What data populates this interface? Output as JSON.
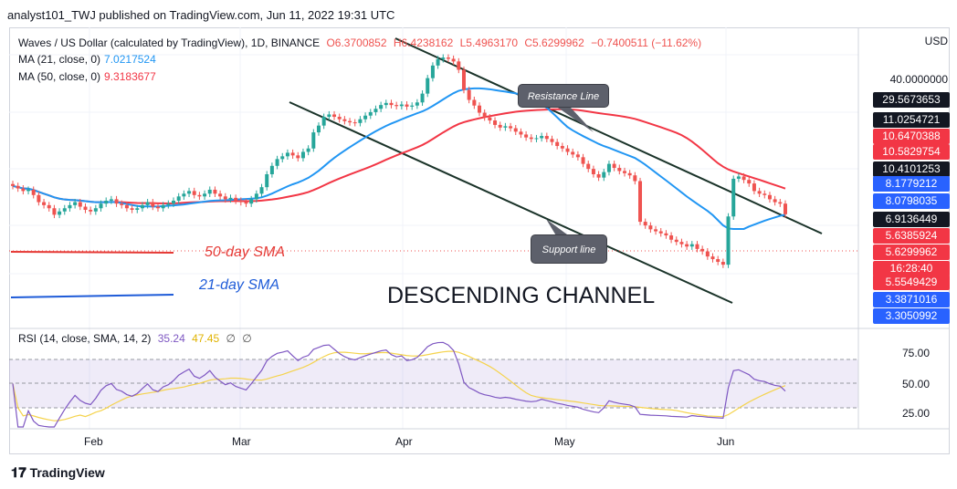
{
  "header": "analyst101_TWJ published on TradingView.com, Jun 11, 2022 19:31 UTC",
  "legend": {
    "symbol": "Waves / US Dollar (calculated by TradingView), 1D, BINANCE",
    "ohlc": {
      "o": "O6.3700852",
      "h": "H6.4238162",
      "l": "L5.4963170",
      "c": "C5.6299962",
      "chg": "−0.7400511 (−11.62%)"
    },
    "ma21": {
      "label": "MA (21, close, 0)",
      "value": "7.0217524"
    },
    "ma50": {
      "label": "MA (50, close, 0)",
      "value": "9.3183677"
    }
  },
  "rsi_legend": {
    "label": "RSI (14, close, SMA, 14, 2)",
    "value": "35.24",
    "sma": "47.45",
    "n1": "∅",
    "n2": "∅"
  },
  "axis": {
    "currency": "USD",
    "top_label": "40.0000000",
    "boxes": [
      {
        "text": "29.5673653",
        "color": "#131722"
      },
      {
        "text": "11.0254721",
        "color": "#131722"
      },
      {
        "text": "10.6470388",
        "color": "#f23645"
      },
      {
        "text": "10.5829754",
        "color": "#f23645"
      },
      {
        "text": "10.4101253",
        "color": "#131722"
      },
      {
        "text": "8.1779212",
        "color": "#2962ff"
      },
      {
        "text": "8.0798035",
        "color": "#2962ff"
      },
      {
        "text": "6.9136449",
        "color": "#131722"
      },
      {
        "text": "5.6385924",
        "color": "#f23645"
      },
      {
        "text": "5.6299962",
        "color": "#f23645"
      },
      {
        "text": "16:28:40",
        "color": "#f23645"
      },
      {
        "text": "5.5549429",
        "color": "#f23645"
      },
      {
        "text": "3.3871016",
        "color": "#2962ff"
      },
      {
        "text": "3.3050992",
        "color": "#2962ff"
      }
    ],
    "rsi_ticks": [
      "75.00",
      "50.00",
      "25.00"
    ],
    "months": [
      "Feb",
      "Mar",
      "Apr",
      "May",
      "Jun"
    ]
  },
  "annotations": {
    "resistance": "Resistance Line",
    "support": "Support line",
    "title": "DESCENDING CHANNEL",
    "sma50": "50-day SMA",
    "sma21": "21-day SMA"
  },
  "brand": "TradingView",
  "colors": {
    "up": "#26a69a",
    "down": "#ef5350",
    "ma21": "#2196f3",
    "ma50": "#f23645",
    "rsi": "#7e57c2",
    "rsi_sma": "#f5d34c"
  },
  "chart_data": {
    "type": "candlestick",
    "symbol": "WAVESUSD",
    "timeframe": "1D",
    "x_range": [
      "Jan 2022",
      "Jun 11 2022"
    ],
    "closes": [
      7.6,
      7.4,
      7.2,
      7.3,
      6.9,
      6.4,
      6.2,
      6.0,
      5.6,
      5.8,
      6.0,
      6.2,
      6.4,
      6.1,
      5.9,
      5.8,
      6.0,
      6.3,
      6.5,
      6.6,
      6.3,
      6.2,
      6.0,
      5.9,
      6.0,
      6.2,
      6.4,
      6.1,
      6.0,
      6.2,
      6.3,
      6.5,
      6.8,
      7.0,
      7.2,
      6.9,
      6.8,
      7.0,
      7.3,
      7.0,
      6.8,
      6.6,
      6.7,
      6.5,
      6.4,
      6.3,
      6.6,
      7.0,
      7.5,
      8.6,
      9.4,
      10.1,
      10.4,
      10.8,
      10.5,
      10.2,
      10.9,
      11.3,
      13.4,
      14.4,
      15.8,
      16.2,
      15.8,
      15.4,
      15.1,
      14.9,
      14.8,
      15.4,
      16.0,
      16.6,
      17.2,
      17.9,
      18.3,
      17.9,
      17.7,
      18.0,
      17.6,
      17.8,
      18.4,
      20.2,
      23.8,
      27.2,
      29.1,
      29.6,
      29.2,
      28.4,
      26.0,
      21.0,
      18.9,
      17.8,
      16.5,
      15.7,
      15.2,
      14.5,
      14.1,
      14.3,
      14.0,
      13.5,
      13.1,
      12.7,
      12.5,
      12.6,
      12.9,
      12.5,
      12.1,
      11.6,
      11.3,
      10.9,
      10.6,
      10.3,
      9.6,
      9.1,
      8.6,
      8.3,
      8.8,
      9.6,
      9.2,
      8.9,
      8.7,
      8.5,
      8.0,
      5.2,
      5.0,
      4.8,
      4.7,
      4.6,
      4.5,
      4.3,
      4.2,
      4.1,
      4.0,
      4.1,
      3.9,
      3.8,
      3.6,
      3.5,
      3.4,
      3.3,
      5.5,
      8.2,
      8.4,
      8.1,
      7.8,
      7.2,
      7.0,
      6.9,
      6.6,
      6.4,
      6.3,
      5.63
    ],
    "ma21_last": 7.0217524,
    "ma50_last": 9.3183677,
    "rsi": {
      "value": 35.24,
      "sma": 47.45,
      "levels": [
        75,
        50,
        25
      ]
    }
  }
}
